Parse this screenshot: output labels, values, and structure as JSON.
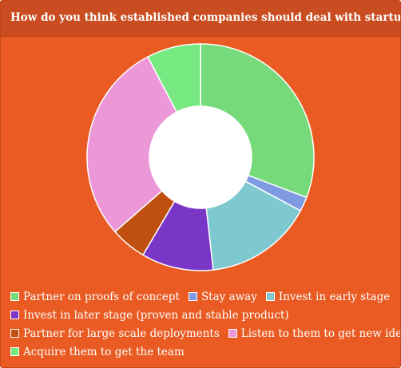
{
  "chart_data": {
    "type": "pie",
    "title": "How do you think established companies should deal with startups?",
    "donut": true,
    "legend_position": "bottom",
    "series": [
      {
        "name": "Partner on proofs of concept",
        "value": 30.0,
        "color": "#76d97a"
      },
      {
        "name": "Stay away",
        "value": 2.0,
        "color": "#7e9ae0"
      },
      {
        "name": "Invest in early stage",
        "value": 15.0,
        "color": "#7ec8cf"
      },
      {
        "name": "Invest in later stage (proven and stable product)",
        "value": 10.0,
        "color": "#7a36c7"
      },
      {
        "name": "Partner for large scale deployments",
        "value": 5.0,
        "color": "#c0500f"
      },
      {
        "name": "Listen to them to get new ideas",
        "value": 28.0,
        "color": "#ec97d8"
      },
      {
        "name": "Acquire them to get the team",
        "value": 7.5,
        "color": "#76ea81"
      }
    ]
  }
}
